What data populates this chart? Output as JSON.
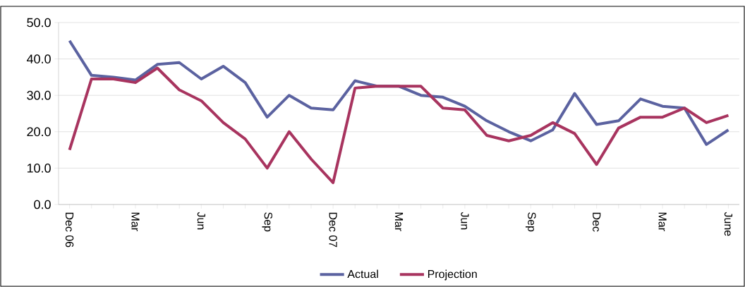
{
  "chart_data": {
    "type": "line",
    "categories": [
      "Dec 06",
      null,
      null,
      "Mar",
      null,
      null,
      "Jun",
      null,
      null,
      "Sep",
      null,
      null,
      "Dec 07",
      null,
      null,
      "Mar",
      null,
      null,
      "Jun",
      null,
      null,
      "Sep",
      null,
      null,
      "Dec",
      null,
      null,
      "Mar",
      null,
      null,
      "June"
    ],
    "series": [
      {
        "name": "Actual",
        "color": "#5b62a0",
        "values": [
          45,
          35.5,
          35,
          34.2,
          38.5,
          39,
          34.5,
          38,
          33.5,
          24,
          30,
          26.5,
          26,
          34,
          32.5,
          32.5,
          30,
          29.5,
          27,
          23,
          20,
          17.5,
          20.5,
          30.5,
          22,
          23,
          29,
          27,
          26.5,
          16.5,
          20.5
        ]
      },
      {
        "name": "Projection",
        "color": "#a8345f",
        "values": [
          15,
          34.5,
          34.5,
          33.5,
          37.5,
          31.5,
          28.5,
          22.5,
          18,
          10,
          20,
          12.5,
          6,
          32,
          32.5,
          32.5,
          32.5,
          26.5,
          26,
          19,
          17.5,
          19,
          22.5,
          19.5,
          11,
          21,
          24,
          24,
          26.5,
          22.5,
          24.5
        ]
      }
    ],
    "ylim": [
      0,
      50
    ],
    "yticks": [
      {
        "value": 0,
        "label": "0.0"
      },
      {
        "value": 10,
        "label": "10.0"
      },
      {
        "value": 20,
        "label": "20.0"
      },
      {
        "value": 30,
        "label": "30.0"
      },
      {
        "value": 40,
        "label": "40.0"
      },
      {
        "value": 50,
        "label": "50.0"
      }
    ],
    "grid": "y",
    "legend": "bottom",
    "marker": "none",
    "line_style": "solid"
  }
}
